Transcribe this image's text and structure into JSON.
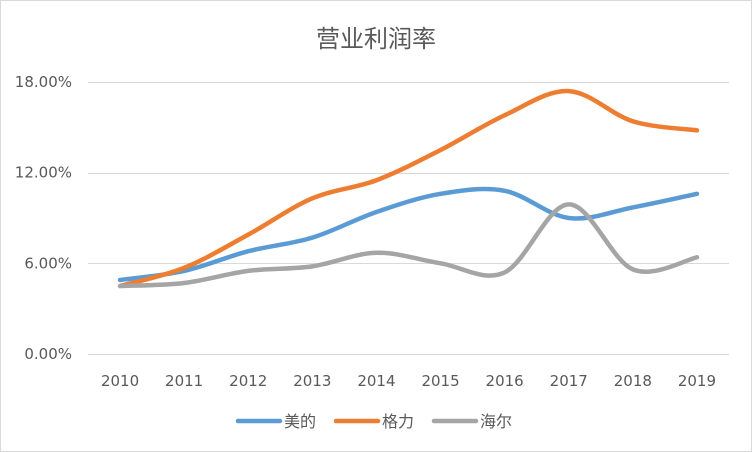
{
  "chart_data": {
    "type": "line",
    "title": "营业利润率",
    "xlabel": "",
    "ylabel": "",
    "smooth": true,
    "grid": true,
    "legend_position": "bottom",
    "ylim": [
      0,
      18
    ],
    "y_ticks": [
      {
        "value": 0,
        "label": "0.00%"
      },
      {
        "value": 6,
        "label": "6.00%"
      },
      {
        "value": 12,
        "label": "12.00%"
      },
      {
        "value": 18,
        "label": "18.00%"
      }
    ],
    "categories": [
      "2010",
      "2011",
      "2012",
      "2013",
      "2014",
      "2015",
      "2016",
      "2017",
      "2018",
      "2019"
    ],
    "series": [
      {
        "name": "美的",
        "color": "#5B9BD5",
        "values": [
          4.9,
          5.5,
          6.8,
          7.7,
          9.4,
          10.6,
          10.8,
          9.0,
          9.7,
          10.6
        ]
      },
      {
        "name": "格力",
        "color": "#ED7D31",
        "values": [
          4.5,
          5.7,
          7.9,
          10.3,
          11.5,
          13.5,
          15.8,
          17.4,
          15.4,
          14.8
        ]
      },
      {
        "name": "海尔",
        "color": "#A5A5A5",
        "values": [
          4.5,
          4.7,
          5.5,
          5.8,
          6.7,
          6.0,
          5.4,
          9.9,
          5.6,
          6.4
        ]
      }
    ],
    "colors": {
      "gridline": "#D9D9D9",
      "text": "#595959"
    }
  }
}
